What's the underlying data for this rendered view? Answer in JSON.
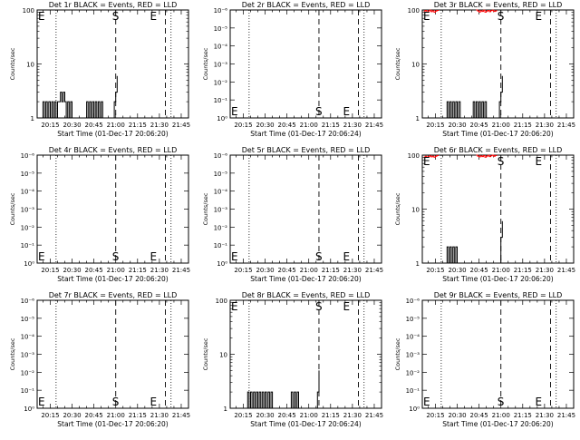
{
  "colors": {
    "events": "#000000",
    "lld": "#ff0000",
    "background": "#ffffff"
  },
  "chart_data": [
    {
      "id": "1r",
      "type": "line",
      "title": "Det 1r BLACK = Events, RED = LLD",
      "xlabel": "Start Time (01-Dec-17 20:06:20)",
      "ylabel": "Counts/sec",
      "yscale": "log",
      "x_ticks": [
        "20:15",
        "20:30",
        "20:45",
        "21:00",
        "21:15",
        "21:30",
        "21:45"
      ],
      "y_ticks": [
        "1",
        "10",
        "100"
      ],
      "ylim": [
        1,
        100
      ],
      "markers": [
        {
          "label": "E",
          "time": "20:06"
        },
        {
          "label": "S",
          "time": "21:00"
        },
        {
          "label": "E",
          "time": "21:26"
        }
      ],
      "series": [
        {
          "color": "#000000",
          "points": [
            [
              "20:09",
              1
            ],
            [
              "20:10",
              2
            ],
            [
              "20:11",
              1
            ],
            [
              "20:12",
              2
            ],
            [
              "20:13",
              1
            ],
            [
              "20:14",
              2
            ],
            [
              "20:15",
              1
            ],
            [
              "20:16",
              2
            ],
            [
              "20:17",
              1
            ],
            [
              "20:18",
              2
            ],
            [
              "20:19",
              1
            ],
            [
              "20:20",
              2
            ],
            [
              "20:21",
              2
            ],
            [
              "20:22",
              3
            ],
            [
              "20:23",
              2
            ],
            [
              "20:24",
              3
            ],
            [
              "20:25",
              2
            ],
            [
              "20:26",
              1
            ],
            [
              "20:27",
              2
            ],
            [
              "20:28",
              1
            ],
            [
              "20:29",
              2
            ],
            [
              "20:30",
              1
            ],
            [
              "20:31",
              1
            ],
            [
              "20:39",
              1
            ],
            [
              "20:40",
              2
            ],
            [
              "20:41",
              1
            ],
            [
              "20:42",
              2
            ],
            [
              "20:43",
              1
            ],
            [
              "20:44",
              2
            ],
            [
              "20:45",
              1
            ],
            [
              "20:46",
              2
            ],
            [
              "20:47",
              1
            ],
            [
              "20:48",
              2
            ],
            [
              "20:49",
              1
            ],
            [
              "20:50",
              2
            ],
            [
              "20:51",
              1
            ],
            [
              "20:52",
              1
            ],
            [
              "20:58",
              1
            ],
            [
              "20:59",
              2
            ],
            [
              "21:00",
              3
            ],
            [
              "21:01",
              6
            ]
          ]
        }
      ]
    },
    {
      "id": "2r",
      "type": "line",
      "title": "Det 2r BLACK = Events, RED = LLD",
      "xlabel": "Start Time (01-Dec-17 20:06:24)",
      "ylabel": "Counts/sec",
      "yscale": "log",
      "x_ticks": [
        "20:15",
        "20:30",
        "20:45",
        "21:00",
        "21:15",
        "21:30",
        "21:45"
      ],
      "y_ticks": [
        "10⁰",
        "10⁻¹",
        "10⁻²",
        "10⁻³",
        "10⁻⁴",
        "10⁻⁵",
        "10⁻⁶"
      ],
      "ylim": [
        1,
        1e-06
      ],
      "markers": [
        {
          "label": "E",
          "time": "20:06"
        },
        {
          "label": "S",
          "time": "21:07"
        },
        {
          "label": "E",
          "time": "21:26"
        }
      ],
      "series": []
    },
    {
      "id": "3r",
      "type": "line",
      "title": "Det 3r BLACK = Events, RED = LLD",
      "xlabel": "Start Time (01-Dec-17 20:06:20)",
      "ylabel": "Counts/sec",
      "yscale": "log",
      "x_ticks": [
        "20:15",
        "20:30",
        "20:45",
        "21:00",
        "21:15",
        "21:30",
        "21:45"
      ],
      "y_ticks": [
        "1",
        "10",
        "100"
      ],
      "ylim": [
        1,
        100
      ],
      "markers": [
        {
          "label": "E",
          "time": "20:06"
        },
        {
          "label": "S",
          "time": "21:00"
        },
        {
          "label": "E",
          "time": "21:26"
        }
      ],
      "series": [
        {
          "color": "#000000",
          "points": [
            [
              "20:22",
              1
            ],
            [
              "20:23",
              2
            ],
            [
              "20:24",
              1
            ],
            [
              "20:25",
              2
            ],
            [
              "20:26",
              1
            ],
            [
              "20:27",
              2
            ],
            [
              "20:28",
              1
            ],
            [
              "20:29",
              2
            ],
            [
              "20:30",
              1
            ],
            [
              "20:31",
              2
            ],
            [
              "20:32",
              1
            ],
            [
              "20:33",
              1
            ],
            [
              "20:40",
              1
            ],
            [
              "20:41",
              2
            ],
            [
              "20:42",
              1
            ],
            [
              "20:43",
              2
            ],
            [
              "20:44",
              1
            ],
            [
              "20:45",
              2
            ],
            [
              "20:46",
              1
            ],
            [
              "20:47",
              2
            ],
            [
              "20:48",
              1
            ],
            [
              "20:49",
              2
            ],
            [
              "20:50",
              1
            ],
            [
              "20:51",
              1
            ],
            [
              "20:58",
              1
            ],
            [
              "20:59",
              2
            ],
            [
              "21:00",
              3
            ],
            [
              "21:01",
              6
            ]
          ]
        },
        {
          "color": "#ff0000",
          "points": [
            [
              "20:07",
              95
            ],
            [
              "20:08",
              98
            ],
            [
              "20:09",
              92
            ],
            [
              "20:10",
              96
            ],
            [
              "20:11",
              99
            ],
            [
              "20:12",
              93
            ],
            [
              "20:13",
              97
            ],
            [
              "20:14",
              91
            ],
            [
              "20:15",
              95
            ],
            [
              "20:16",
              98
            ],
            [
              "20:17",
              100
            ]
          ]
        },
        {
          "color": "#ff0000",
          "points": [
            [
              "20:43",
              100
            ],
            [
              "20:44",
              96
            ],
            [
              "20:45",
              92
            ],
            [
              "20:46",
              97
            ],
            [
              "20:47",
              94
            ],
            [
              "20:48",
              99
            ],
            [
              "20:49",
              91
            ],
            [
              "20:50",
              95
            ],
            [
              "20:51",
              98
            ],
            [
              "20:52",
              93
            ],
            [
              "20:53",
              97
            ],
            [
              "20:54",
              99
            ],
            [
              "20:55",
              94
            ],
            [
              "20:56",
              96
            ],
            [
              "20:57",
              100
            ]
          ]
        }
      ]
    },
    {
      "id": "4r",
      "type": "line",
      "title": "Det 4r BLACK = Events, RED = LLD",
      "xlabel": "Start Time (01-Dec-17 20:06:20)",
      "ylabel": "Counts/sec",
      "yscale": "log",
      "x_ticks": [
        "20:15",
        "20:30",
        "20:45",
        "21:00",
        "21:15",
        "21:30",
        "21:45"
      ],
      "y_ticks": [
        "10⁰",
        "10⁻¹",
        "10⁻²",
        "10⁻³",
        "10⁻⁴",
        "10⁻⁵",
        "10⁻⁶"
      ],
      "ylim": [
        1,
        1e-06
      ],
      "markers": [
        {
          "label": "E",
          "time": "20:06"
        },
        {
          "label": "S",
          "time": "21:00"
        },
        {
          "label": "E",
          "time": "21:26"
        }
      ],
      "series": []
    },
    {
      "id": "5r",
      "type": "line",
      "title": "Det 5r BLACK = Events, RED = LLD",
      "xlabel": "Start Time (01-Dec-17 20:06:20)",
      "ylabel": "Counts/sec",
      "yscale": "log",
      "x_ticks": [
        "20:15",
        "20:30",
        "20:45",
        "21:00",
        "21:15",
        "21:30",
        "21:45"
      ],
      "y_ticks": [
        "10⁰",
        "10⁻¹",
        "10⁻²",
        "10⁻³",
        "10⁻⁴",
        "10⁻⁵",
        "10⁻⁶"
      ],
      "ylim": [
        1,
        1e-06
      ],
      "markers": [
        {
          "label": "E",
          "time": "20:06"
        },
        {
          "label": "S",
          "time": "21:07"
        },
        {
          "label": "E",
          "time": "21:26"
        }
      ],
      "series": []
    },
    {
      "id": "6r",
      "type": "line",
      "title": "Det 6r BLACK = Events, RED = LLD",
      "xlabel": "Start Time (01-Dec-17 20:06:20)",
      "ylabel": "Counts/sec",
      "yscale": "log",
      "x_ticks": [
        "20:15",
        "20:30",
        "20:45",
        "21:00",
        "21:15",
        "21:30",
        "21:45"
      ],
      "y_ticks": [
        "1",
        "10",
        "100"
      ],
      "ylim": [
        1,
        100
      ],
      "markers": [
        {
          "label": "E",
          "time": "20:06"
        },
        {
          "label": "S",
          "time": "21:00"
        },
        {
          "label": "E",
          "time": "21:26"
        }
      ],
      "series": [
        {
          "color": "#000000",
          "points": [
            [
              "20:22",
              1
            ],
            [
              "20:23",
              2
            ],
            [
              "20:24",
              1
            ],
            [
              "20:25",
              2
            ],
            [
              "20:26",
              1
            ],
            [
              "20:27",
              2
            ],
            [
              "20:28",
              1
            ],
            [
              "20:29",
              2
            ],
            [
              "20:30",
              1
            ],
            [
              "20:31",
              1
            ],
            [
              "20:59",
              1
            ],
            [
              "21:00",
              3
            ],
            [
              "21:01",
              6
            ]
          ]
        },
        {
          "color": "#ff0000",
          "points": [
            [
              "20:07",
              92
            ],
            [
              "20:08",
              95
            ],
            [
              "20:09",
              91
            ],
            [
              "20:10",
              94
            ],
            [
              "20:11",
              97
            ],
            [
              "20:12",
              93
            ],
            [
              "20:13",
              96
            ],
            [
              "20:14",
              92
            ],
            [
              "20:15",
              95
            ],
            [
              "20:16",
              98
            ],
            [
              "20:17",
              100
            ]
          ]
        },
        {
          "color": "#ff0000",
          "points": [
            [
              "20:43",
              100
            ],
            [
              "20:44",
              96
            ],
            [
              "20:45",
              93
            ],
            [
              "20:46",
              97
            ],
            [
              "20:47",
              94
            ],
            [
              "20:48",
              98
            ],
            [
              "20:49",
              92
            ],
            [
              "20:50",
              96
            ],
            [
              "20:51",
              99
            ],
            [
              "20:52",
              94
            ],
            [
              "20:53",
              97
            ],
            [
              "20:54",
              100
            ],
            [
              "20:55",
              95
            ],
            [
              "20:56",
              98
            ],
            [
              "20:57",
              100
            ]
          ]
        }
      ]
    },
    {
      "id": "7r",
      "type": "line",
      "title": "Det 7r BLACK = Events, RED = LLD",
      "xlabel": "Start Time (01-Dec-17 20:06:20)",
      "ylabel": "Counts/sec",
      "yscale": "log",
      "x_ticks": [
        "20:15",
        "20:30",
        "20:45",
        "21:00",
        "21:15",
        "21:30",
        "21:45"
      ],
      "y_ticks": [
        "10⁰",
        "10⁻¹",
        "10⁻²",
        "10⁻³",
        "10⁻⁴",
        "10⁻⁵",
        "10⁻⁶"
      ],
      "ylim": [
        1,
        1e-06
      ],
      "markers": [
        {
          "label": "E",
          "time": "20:06"
        },
        {
          "label": "S",
          "time": "21:00"
        },
        {
          "label": "E",
          "time": "21:26"
        }
      ],
      "series": []
    },
    {
      "id": "8r",
      "type": "line",
      "title": "Det 8r BLACK = Events, RED = LLD",
      "xlabel": "Start Time (01-Dec-17 20:06:24)",
      "ylabel": "Counts/sec",
      "yscale": "log",
      "x_ticks": [
        "20:15",
        "20:30",
        "20:45",
        "21:00",
        "21:15",
        "21:30",
        "21:45"
      ],
      "y_ticks": [
        "1",
        "10",
        "100"
      ],
      "ylim": [
        1,
        100
      ],
      "markers": [
        {
          "label": "E",
          "time": "20:06"
        },
        {
          "label": "S",
          "time": "21:07"
        },
        {
          "label": "E",
          "time": "21:26"
        }
      ],
      "series": [
        {
          "color": "#000000",
          "points": [
            [
              "20:17",
              1
            ],
            [
              "20:18",
              2
            ],
            [
              "20:19",
              1
            ],
            [
              "20:20",
              2
            ],
            [
              "20:21",
              1
            ],
            [
              "20:22",
              2
            ],
            [
              "20:23",
              1
            ],
            [
              "20:24",
              2
            ],
            [
              "20:25",
              1
            ],
            [
              "20:26",
              2
            ],
            [
              "20:27",
              1
            ],
            [
              "20:28",
              2
            ],
            [
              "20:29",
              1
            ],
            [
              "20:30",
              2
            ],
            [
              "20:31",
              1
            ],
            [
              "20:32",
              2
            ],
            [
              "20:33",
              1
            ],
            [
              "20:34",
              2
            ],
            [
              "20:35",
              1
            ],
            [
              "20:36",
              1
            ],
            [
              "20:47",
              1
            ],
            [
              "20:48",
              2
            ],
            [
              "20:49",
              1
            ],
            [
              "20:50",
              2
            ],
            [
              "20:51",
              1
            ],
            [
              "20:52",
              2
            ],
            [
              "20:53",
              1
            ],
            [
              "20:54",
              1
            ],
            [
              "21:05",
              1
            ],
            [
              "21:06",
              2
            ],
            [
              "21:07",
              5
            ]
          ]
        }
      ]
    },
    {
      "id": "9r",
      "type": "line",
      "title": "Det 9r BLACK = Events, RED = LLD",
      "xlabel": "Start Time (01-Dec-17 20:06:20)",
      "ylabel": "Counts/sec",
      "yscale": "log",
      "x_ticks": [
        "20:15",
        "20:30",
        "20:45",
        "21:00",
        "21:15",
        "21:30",
        "21:45"
      ],
      "y_ticks": [
        "10⁰",
        "10⁻¹",
        "10⁻²",
        "10⁻³",
        "10⁻⁴",
        "10⁻⁵",
        "10⁻⁶"
      ],
      "ylim": [
        1,
        1e-06
      ],
      "markers": [
        {
          "label": "E",
          "time": "20:06"
        },
        {
          "label": "S",
          "time": "21:00"
        },
        {
          "label": "E",
          "time": "21:26"
        }
      ],
      "series": []
    }
  ]
}
